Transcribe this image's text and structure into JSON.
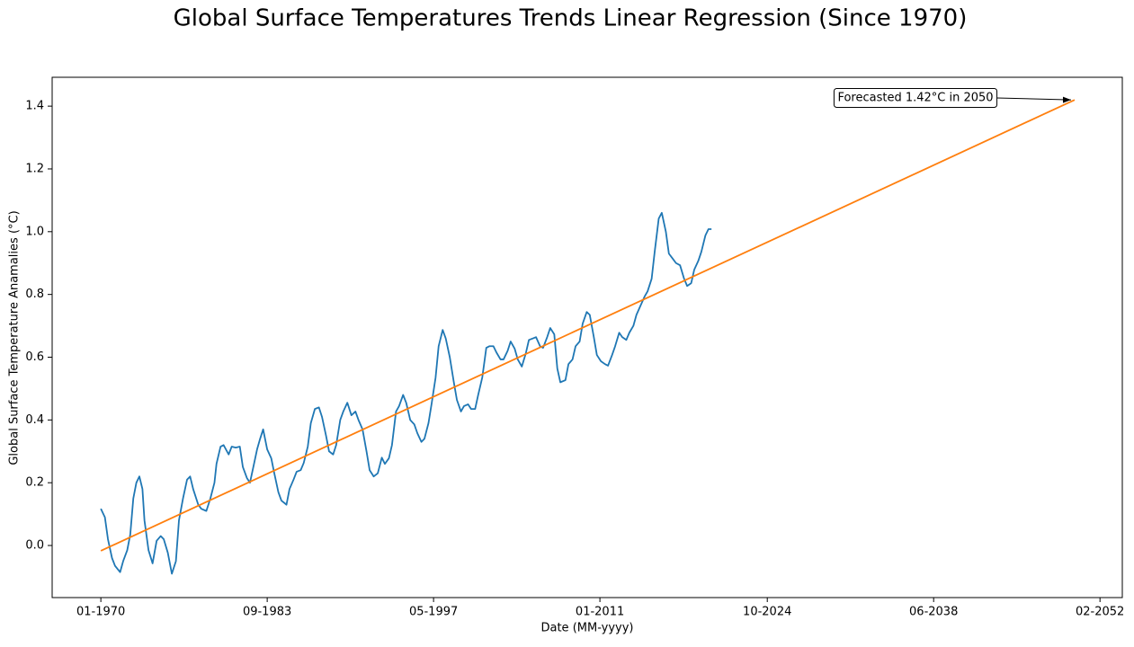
{
  "chart_data": {
    "type": "line",
    "title": "Global Surface Temperatures Trends Linear Regression (Since 1970)",
    "x_label": "Date (MM-yyyy)",
    "y_label": "Global Surface Temperature Anamalies (°C)",
    "xlim": [
      "01-1966",
      "12-2053"
    ],
    "xticks": [
      "01-1970",
      "09-1983",
      "05-1997",
      "01-2011",
      "10-2024",
      "06-2038",
      "02-2052"
    ],
    "ylim": [
      -0.166,
      1.492
    ],
    "yticks": [
      {
        "value": 0,
        "label": "0.0"
      },
      0.2,
      0.4,
      0.6,
      0.8,
      {
        "value": 1,
        "label": "1.0"
      },
      1.2,
      1.4
    ],
    "series": [
      {
        "color": "#1f77b4",
        "x": [
          "01-1970",
          "05-1970",
          "08-1970",
          "12-1970",
          "03-1971",
          "08-1971",
          "11-1971",
          "03-1972",
          "06-1972",
          "09-1972",
          "12-1972",
          "03-1973",
          "06-1973",
          "08-1973",
          "12-1973",
          "04-1974",
          "08-1974",
          "12-1974",
          "03-1975",
          "07-1975",
          "11-1975",
          "03-1976",
          "06-1976",
          "10-1976",
          "02-1977",
          "05-1977",
          "08-1977",
          "01-1978",
          "04-1978",
          "09-1978",
          "01-1979",
          "05-1979",
          "07-1979",
          "11-1979",
          "02-1980",
          "07-1980",
          "10-1980",
          "02-1981",
          "06-1981",
          "09-1981",
          "01-1982",
          "04-1982",
          "08-1982",
          "11-1982",
          "02-1983",
          "05-1983",
          "09-1983",
          "01-1984",
          "04-1984",
          "08-1984",
          "11-1984",
          "04-1985",
          "07-1985",
          "11-1985",
          "02-1986",
          "06-1986",
          "09-1986",
          "01-1987",
          "04-1987",
          "08-1987",
          "12-1987",
          "03-1988",
          "07-1988",
          "10-1988",
          "02-1989",
          "05-1989",
          "09-1989",
          "12-1989",
          "04-1990",
          "08-1990",
          "12-1990",
          "03-1991",
          "07-1991",
          "11-1991",
          "02-1992",
          "06-1992",
          "10-1992",
          "02-1993",
          "05-1993",
          "09-1993",
          "12-1993",
          "04-1994",
          "07-1994",
          "11-1994",
          "02-1995",
          "06-1995",
          "10-1995",
          "01-1996",
          "05-1996",
          "08-1996",
          "12-1996",
          "03-1997",
          "07-1997",
          "10-1997",
          "02-1998",
          "05-1998",
          "09-1998",
          "01-1999",
          "04-1999",
          "08-1999",
          "11-1999",
          "03-2000",
          "06-2000",
          "10-2000",
          "01-2001",
          "05-2001",
          "09-2001",
          "12-2001",
          "04-2002",
          "07-2002",
          "11-2002",
          "02-2003",
          "06-2003",
          "09-2003",
          "01-2004",
          "04-2004",
          "08-2004",
          "12-2004",
          "03-2005",
          "07-2005",
          "10-2005",
          "02-2006",
          "05-2006",
          "09-2006",
          "12-2006",
          "04-2007",
          "07-2007",
          "10-2007",
          "03-2008",
          "06-2008",
          "10-2008",
          "01-2009",
          "05-2009",
          "08-2009",
          "12-2009",
          "03-2010",
          "07-2010",
          "10-2010",
          "02-2011",
          "06-2011",
          "09-2011",
          "01-2012",
          "04-2012",
          "08-2012",
          "11-2012",
          "03-2013",
          "06-2013",
          "10-2013",
          "01-2014",
          "05-2014",
          "09-2014",
          "12-2014",
          "04-2015",
          "07-2015",
          "11-2015",
          "02-2016",
          "06-2016",
          "09-2016",
          "01-2017",
          "04-2017",
          "08-2017",
          "12-2017",
          "03-2018",
          "07-2018",
          "10-2018",
          "02-2019",
          "05-2019",
          "09-2019",
          "12-2019",
          "03-2020"
        ],
        "values": [
          0.117,
          0.09,
          0.02,
          -0.04,
          -0.065,
          -0.085,
          -0.05,
          -0.015,
          0.035,
          0.15,
          0.2,
          0.22,
          0.18,
          0.08,
          -0.015,
          -0.057,
          0.015,
          0.03,
          0.02,
          -0.023,
          -0.09,
          -0.05,
          0.08,
          0.15,
          0.21,
          0.22,
          0.18,
          0.13,
          0.117,
          0.11,
          0.15,
          0.2,
          0.26,
          0.315,
          0.32,
          0.29,
          0.315,
          0.312,
          0.315,
          0.25,
          0.215,
          0.2,
          0.26,
          0.306,
          0.34,
          0.37,
          0.306,
          0.278,
          0.23,
          0.17,
          0.143,
          0.13,
          0.18,
          0.21,
          0.235,
          0.24,
          0.263,
          0.315,
          0.39,
          0.435,
          0.44,
          0.41,
          0.35,
          0.3,
          0.29,
          0.32,
          0.4,
          0.427,
          0.455,
          0.415,
          0.427,
          0.4,
          0.37,
          0.298,
          0.24,
          0.22,
          0.23,
          0.28,
          0.26,
          0.278,
          0.32,
          0.427,
          0.444,
          0.48,
          0.455,
          0.4,
          0.386,
          0.358,
          0.33,
          0.34,
          0.39,
          0.45,
          0.535,
          0.635,
          0.687,
          0.66,
          0.6,
          0.52,
          0.464,
          0.427,
          0.444,
          0.45,
          0.435,
          0.435,
          0.48,
          0.535,
          0.63,
          0.635,
          0.635,
          0.615,
          0.593,
          0.593,
          0.62,
          0.65,
          0.627,
          0.593,
          0.57,
          0.613,
          0.655,
          0.66,
          0.664,
          0.635,
          0.63,
          0.664,
          0.693,
          0.673,
          0.564,
          0.52,
          0.527,
          0.578,
          0.593,
          0.635,
          0.65,
          0.707,
          0.744,
          0.735,
          0.664,
          0.607,
          0.587,
          0.578,
          0.573,
          0.607,
          0.635,
          0.678,
          0.664,
          0.655,
          0.678,
          0.7,
          0.735,
          0.764,
          0.793,
          0.81,
          0.85,
          0.936,
          1.042,
          1.06,
          1.0,
          0.93,
          0.913,
          0.9,
          0.893,
          0.85,
          0.827,
          0.836,
          0.879,
          0.907,
          0.936,
          0.988,
          1.008,
          1.008
        ]
      },
      {
        "color": "#ff7f0e",
        "x": [
          "01-1970",
          "01-2050"
        ],
        "values": [
          -0.017,
          1.42
        ]
      }
    ],
    "annotation": {
      "text": "Forecasted 1.42°C in 2050",
      "series": 1,
      "point": 1
    }
  }
}
